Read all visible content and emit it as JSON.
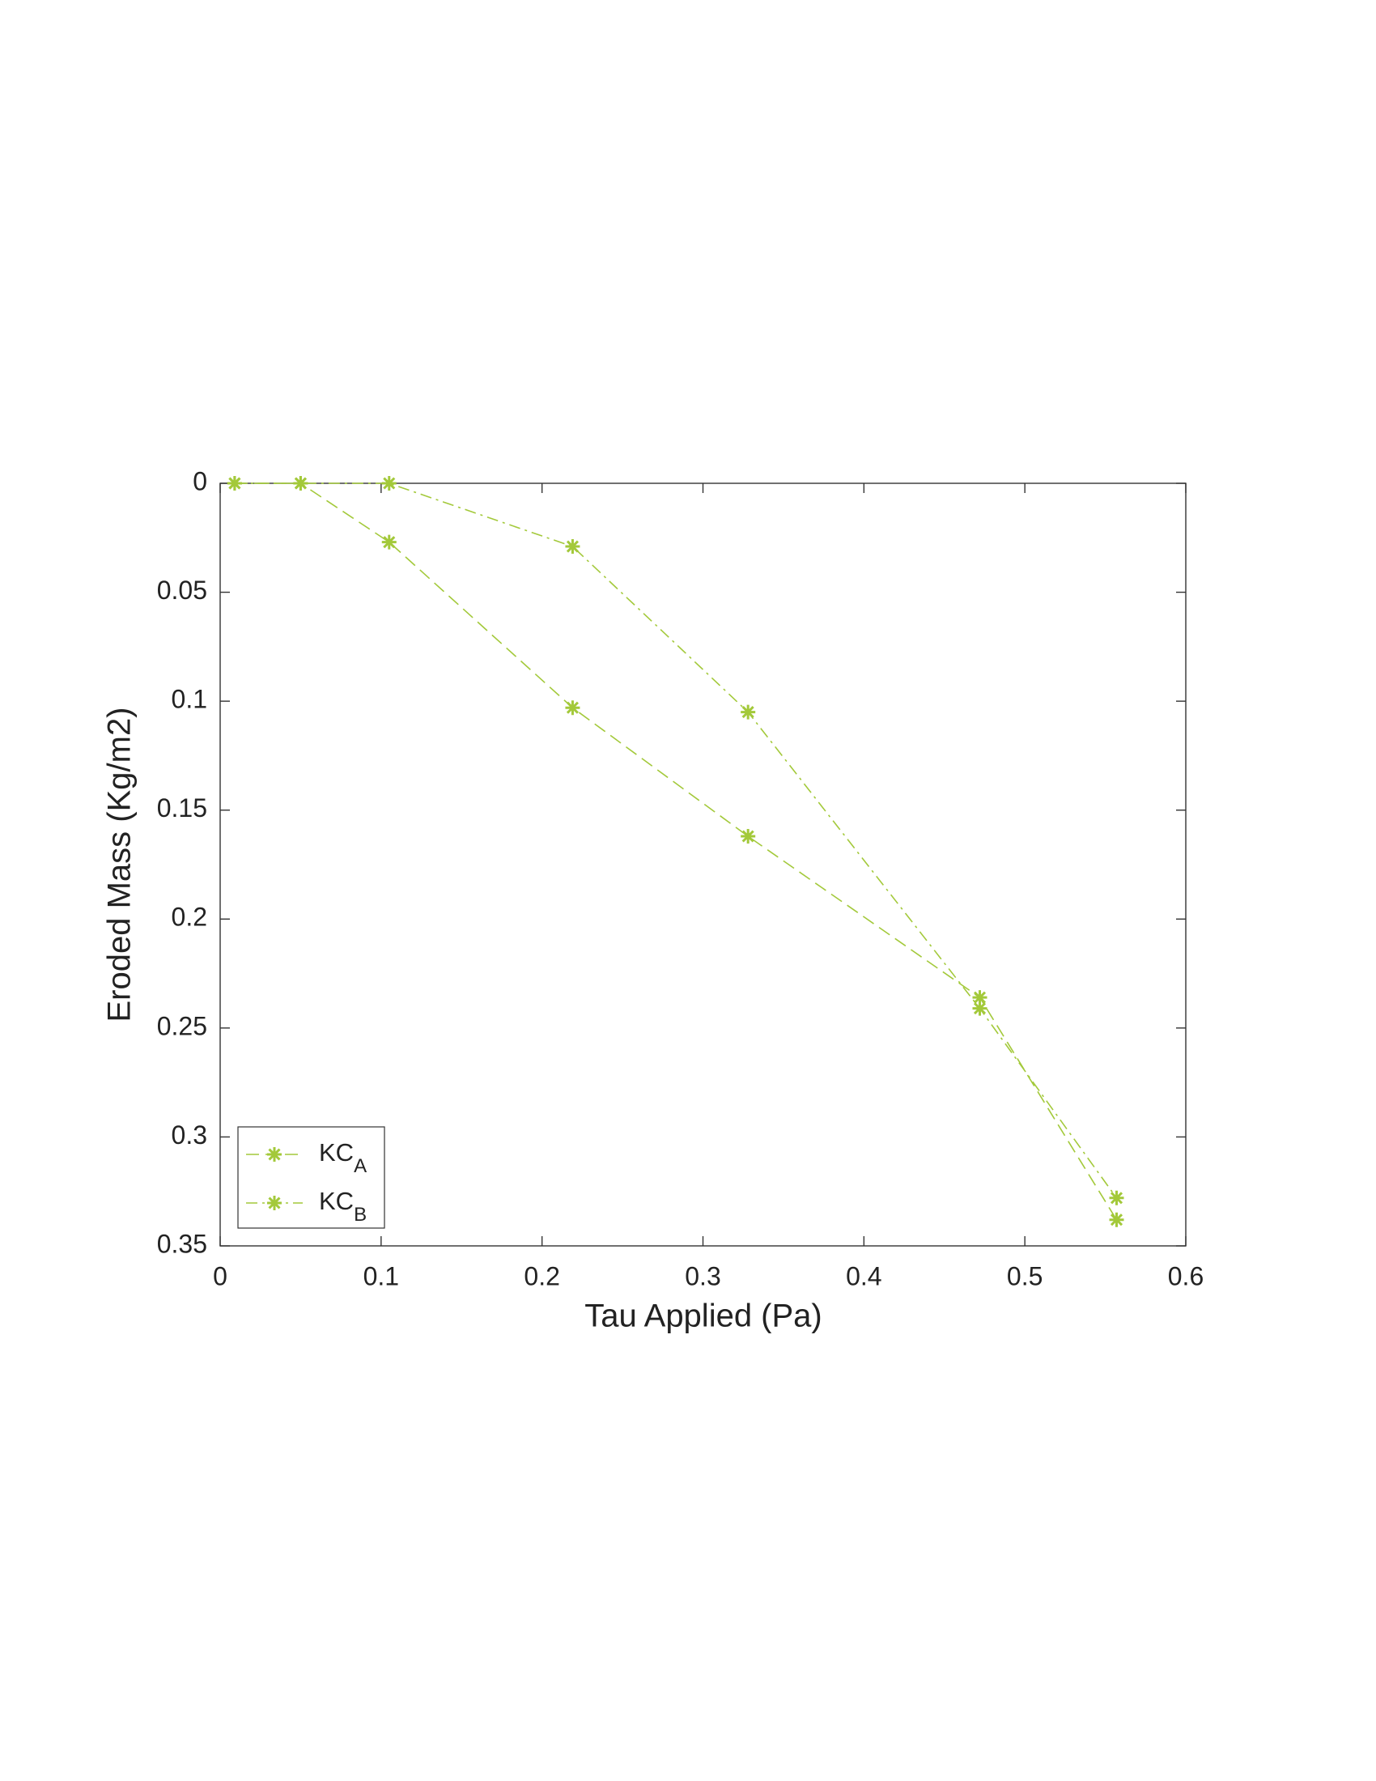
{
  "chart_data": {
    "type": "line",
    "xlabel": "Tau Applied  (Pa)",
    "ylabel": "Eroded Mass  (Kg/m2)",
    "series": [
      {
        "name": "KC_A",
        "color": "#a3c93a",
        "line_style": "dashed",
        "x": [
          0.009,
          0.05,
          0.105,
          0.219,
          0.328,
          0.472,
          0.557
        ],
        "values": [
          0,
          0,
          0.027,
          0.103,
          0.162,
          0.236,
          0.338
        ]
      },
      {
        "name": "KC_B",
        "color": "#a3c93a",
        "line_style": "dash-dot",
        "x": [
          0.009,
          0.05,
          0.105,
          0.219,
          0.328,
          0.472,
          0.557
        ],
        "values": [
          0,
          0,
          0,
          0.029,
          0.105,
          0.241,
          0.328
        ]
      }
    ],
    "xlim": [
      0,
      0.6
    ],
    "xticks": [
      0,
      0.1,
      0.2,
      0.3,
      0.4,
      0.5,
      0.6
    ],
    "ylim": [
      0,
      0.35
    ],
    "yticks": [
      0,
      0.05,
      0.1,
      0.15,
      0.2,
      0.25,
      0.3,
      0.35
    ],
    "y_reversed": true,
    "grid": false,
    "legend": "lower left"
  }
}
